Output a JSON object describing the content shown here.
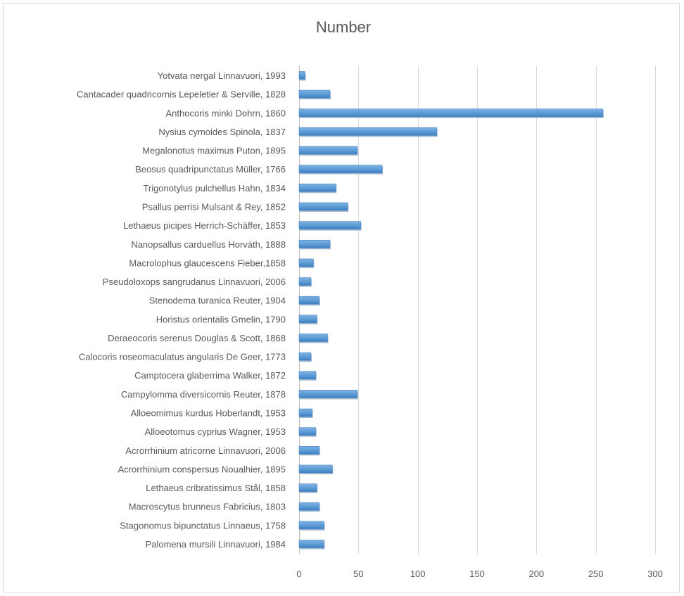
{
  "chart_data": {
    "type": "bar",
    "orientation": "horizontal",
    "title": "Number",
    "xlabel": "",
    "ylabel": "",
    "xlim": [
      0,
      300
    ],
    "xticks": [
      0,
      50,
      100,
      150,
      200,
      250,
      300
    ],
    "grid": true,
    "legend": "none",
    "bar_color": "#5b9bd5",
    "categories": [
      "Yotvata nergal Linnavuori, 1993",
      "Cantacader quadricornis Lepeletier & Serville, 1828",
      "Anthocoris minki  Dohrn, 1860",
      "Nysius cymoides Spinola, 1837",
      "Megalonotus maximus Puton, 1895",
      "Beosus quadripunctatus Müller, 1766",
      "Trigonotylus pulchellus Hahn, 1834",
      "Psallus perrisi  Mulsant & Rey, 1852",
      "Lethaeus picipes Herrich-Schäffer, 1853",
      "Nanopsallus carduellus  Horváth, 1888",
      "Macrolophus glaucescens  Fieber,1858",
      "Pseudoloxops sangrudanus Linnavuori, 2006",
      "Stenodema turanica  Reuter, 1904",
      "Horistus orientalis Gmelin, 1790",
      "Deraeocoris serenus Douglas & Scott, 1868",
      "Calocoris roseomaculatus angularis De Geer, 1773",
      "Camptocera glaberrima  Walker, 1872",
      "Campylomma diversicornis Reuter, 1878",
      "Alloeomimus kurdus Hoberlandt, 1953",
      "Alloeotomus cyprius Wagner, 1953",
      "Acrorrhinium atricorne  Linnavuori, 2006",
      "Acrorrhinium conspersus Noualhier, 1895",
      "Lethaeus cribratissimus  Stål, 1858",
      "Macroscytus brunneus Fabricius, 1803",
      "Stagonomus bipunctatus Linnaeus, 1758",
      "Palomena mursili Linnavuori, 1984"
    ],
    "values": [
      5,
      26,
      256,
      116,
      49,
      70,
      31,
      41,
      52,
      26,
      12,
      10,
      17,
      15,
      24,
      10,
      14,
      49,
      11,
      14,
      17,
      28,
      15,
      17,
      21,
      21
    ]
  }
}
